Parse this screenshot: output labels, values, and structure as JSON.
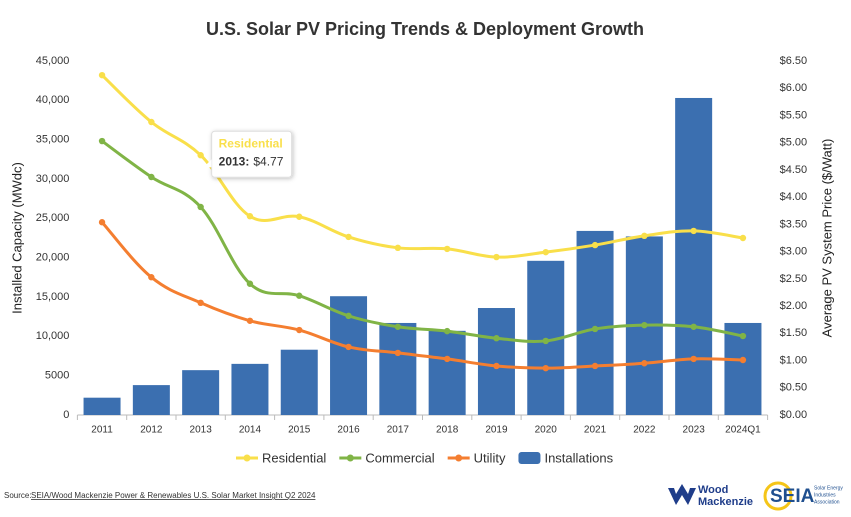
{
  "chart_data": {
    "type": "combo",
    "title": "U.S. Solar PV Pricing Trends & Deployment Growth",
    "y_label": "Installed Capacity (MWdc)",
    "y2_label": "Average PV System Price ($/Watt)",
    "categories": [
      "2011",
      "2012",
      "2013",
      "2014",
      "2015",
      "2016",
      "2017",
      "2018",
      "2019",
      "2020",
      "2021",
      "2022",
      "2023",
      "2024Q1"
    ],
    "series": [
      {
        "name": "Residential",
        "type": "line",
        "axis": "y2",
        "color": "#f9df4a",
        "values": [
          6.24,
          5.38,
          4.77,
          3.65,
          3.64,
          3.27,
          3.07,
          3.05,
          2.9,
          2.99,
          3.12,
          3.29,
          3.38,
          3.25
        ]
      },
      {
        "name": "Commercial",
        "type": "line",
        "axis": "y2",
        "color": "#80b446",
        "values": [
          5.03,
          4.37,
          3.82,
          2.41,
          2.19,
          1.82,
          1.62,
          1.54,
          1.41,
          1.36,
          1.58,
          1.65,
          1.62,
          1.45
        ]
      },
      {
        "name": "Utility",
        "type": "line",
        "axis": "y2",
        "color": "#f47e30",
        "values": [
          3.54,
          2.53,
          2.06,
          1.73,
          1.56,
          1.25,
          1.14,
          1.03,
          0.9,
          0.86,
          0.9,
          0.95,
          1.03,
          1.01
        ]
      },
      {
        "name": "Installations",
        "type": "bar",
        "axis": "y",
        "color": "#3b6fb0",
        "values": [
          2200,
          3800,
          5700,
          6500,
          8300,
          15100,
          11700,
          10700,
          13600,
          19600,
          23400,
          22700,
          40300,
          11700
        ]
      }
    ],
    "ylim": [
      0,
      45000
    ],
    "yticks": [
      0,
      5000,
      {
        "value": 10000,
        "label": "10,000"
      },
      {
        "value": 15000,
        "label": "15,000"
      },
      {
        "value": 20000,
        "label": "20,000"
      },
      {
        "value": 25000,
        "label": "25,000"
      },
      {
        "value": 30000,
        "label": "30,000"
      },
      {
        "value": 35000,
        "label": "35,000"
      },
      {
        "value": 40000,
        "label": "40,000"
      },
      {
        "value": 45000,
        "label": "45,000"
      }
    ],
    "y2lim": [
      0,
      6.5
    ],
    "y2ticks": [
      {
        "value": 0,
        "label": "$0.00"
      },
      {
        "value": 0.5,
        "label": "$0.50"
      },
      {
        "value": 1,
        "label": "$1.00"
      },
      {
        "value": 1.5,
        "label": "$1.50"
      },
      {
        "value": 2,
        "label": "$2.00"
      },
      {
        "value": 2.5,
        "label": "$2.50"
      },
      {
        "value": 3,
        "label": "$3.00"
      },
      {
        "value": 3.5,
        "label": "$3.50"
      },
      {
        "value": 4,
        "label": "$4.00"
      },
      {
        "value": 4.5,
        "label": "$4.50"
      },
      {
        "value": 5,
        "label": "$5.00"
      },
      {
        "value": 5.5,
        "label": "$5.50"
      },
      {
        "value": 6,
        "label": "$6.00"
      },
      {
        "value": 6.5,
        "label": "$6.50"
      }
    ],
    "grid": false,
    "legend": "bottom",
    "tooltip": {
      "series": 0,
      "index": 2,
      "label": "2013:",
      "value_label": "$4.77"
    }
  },
  "source": {
    "prefix": "Source:",
    "link": "SEIA/Wood Mackenzie Power & Renewables U.S. Solar Market Insight Q2 2024"
  },
  "logos": {
    "wood_1": "Wood",
    "wood_2": "Mackenzie",
    "seia": "SEIA",
    "seia_sub_1": "Solar Energy",
    "seia_sub_2": "Industries",
    "seia_sub_3": "Association"
  }
}
